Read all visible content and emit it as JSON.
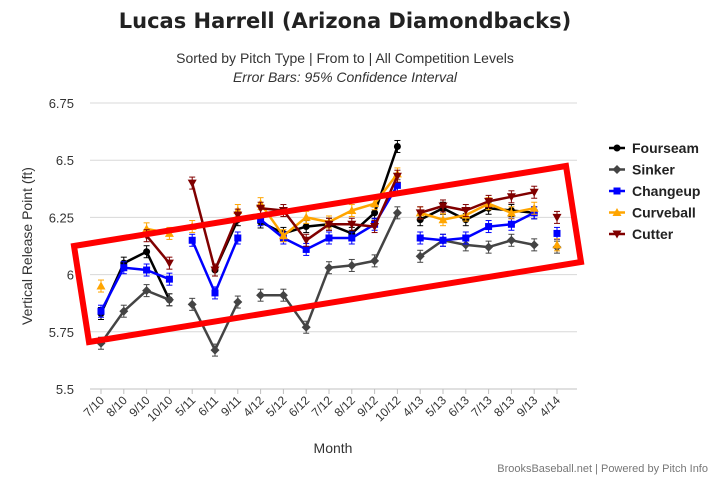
{
  "chart_data": {
    "type": "line",
    "title": "Lucas Harrell (Arizona Diamondbacks)",
    "subtitle": "Sorted by Pitch Type | From to | All Competition Levels",
    "subtitle2": "Error Bars: 95% Confidence Interval",
    "xlabel": "Month",
    "ylabel": "Vertical Release Point (ft)",
    "ylim": [
      5.5,
      6.75
    ],
    "y_ticks": [
      "5.5",
      "5.75",
      "6",
      "6.25",
      "6.5",
      "6.75"
    ],
    "x_ticks": [
      "7/10",
      "8/10",
      "9/10",
      "10/10",
      "5/11",
      "6/11",
      "9/11",
      "4/12",
      "5/12",
      "6/12",
      "7/12",
      "8/12",
      "9/12",
      "10/12",
      "4/13",
      "5/13",
      "6/13",
      "7/13",
      "8/13",
      "9/13",
      "4/14"
    ],
    "grid": true,
    "legend_position": "right",
    "credits": "BrooksBaseball.net | Powered by Pitch Info",
    "series": [
      {
        "name": "Fourseam",
        "color": "#000000",
        "marker": "circle",
        "segments": [
          [
            [
              0,
              5.83
            ],
            [
              1,
              6.05
            ],
            [
              2,
              6.1
            ],
            [
              3,
              5.89
            ]
          ],
          [
            [
              5,
              6.02
            ],
            [
              6,
              6.24
            ]
          ],
          [
            [
              7,
              6.23
            ],
            [
              8,
              6.18
            ],
            [
              9,
              6.21
            ],
            [
              10,
              6.22
            ],
            [
              11,
              6.18
            ],
            [
              12,
              6.27
            ],
            [
              13,
              6.56
            ]
          ],
          [
            [
              14,
              6.24
            ],
            [
              15,
              6.29
            ],
            [
              16,
              6.24
            ],
            [
              17,
              6.29
            ],
            [
              18,
              6.28
            ],
            [
              19,
              6.27
            ]
          ]
        ]
      },
      {
        "name": "Sinker",
        "color": "#444444",
        "marker": "diamond",
        "segments": [
          [
            [
              0,
              5.7
            ],
            [
              1,
              5.84
            ],
            [
              2,
              5.93
            ],
            [
              3,
              5.89
            ]
          ],
          [
            [
              4,
              5.87
            ],
            [
              5,
              5.67
            ],
            [
              6,
              5.88
            ]
          ],
          [
            [
              7,
              5.91
            ],
            [
              8,
              5.91
            ],
            [
              9,
              5.77
            ],
            [
              10,
              6.03
            ],
            [
              11,
              6.04
            ],
            [
              12,
              6.06
            ],
            [
              13,
              6.27
            ]
          ],
          [
            [
              14,
              6.08
            ],
            [
              15,
              6.15
            ],
            [
              16,
              6.13
            ],
            [
              17,
              6.12
            ],
            [
              18,
              6.15
            ],
            [
              19,
              6.13
            ]
          ],
          [
            [
              20,
              6.12
            ]
          ]
        ]
      },
      {
        "name": "Changeup",
        "color": "#0000ff",
        "marker": "square",
        "segments": [
          [
            [
              0,
              5.84
            ],
            [
              1,
              6.03
            ],
            [
              2,
              6.02
            ],
            [
              3,
              5.98
            ]
          ],
          [
            [
              4,
              6.15
            ],
            [
              5,
              5.92
            ],
            [
              6,
              6.16
            ]
          ],
          [
            [
              7,
              6.24
            ],
            [
              8,
              6.16
            ],
            [
              9,
              6.11
            ],
            [
              10,
              6.16
            ],
            [
              11,
              6.16
            ],
            [
              12,
              6.22
            ],
            [
              13,
              6.39
            ]
          ],
          [
            [
              14,
              6.16
            ],
            [
              15,
              6.15
            ],
            [
              16,
              6.16
            ],
            [
              17,
              6.21
            ],
            [
              18,
              6.22
            ],
            [
              19,
              6.27
            ]
          ],
          [
            [
              20,
              6.18
            ]
          ]
        ]
      },
      {
        "name": "Curveball",
        "color": "#ffa500",
        "marker": "triangle",
        "segments": [
          [
            [
              0,
              5.95
            ]
          ],
          [
            [
              2,
              6.2
            ],
            [
              3,
              6.18
            ]
          ],
          [
            [
              4,
              6.21
            ]
          ],
          [
            [
              6,
              6.28
            ]
          ],
          [
            [
              7,
              6.31
            ],
            [
              8,
              6.17
            ],
            [
              9,
              6.25
            ],
            [
              10,
              6.23
            ],
            [
              11,
              6.28
            ],
            [
              12,
              6.31
            ],
            [
              13,
              6.44
            ]
          ],
          [
            [
              14,
              6.27
            ],
            [
              15,
              6.24
            ],
            [
              16,
              6.26
            ],
            [
              17,
              6.31
            ],
            [
              18,
              6.27
            ],
            [
              19,
              6.29
            ]
          ],
          [
            [
              20,
              6.13
            ]
          ]
        ]
      },
      {
        "name": "Cutter",
        "color": "#800000",
        "marker": "triangle-down",
        "segments": [
          [
            [
              2,
              6.17
            ],
            [
              3,
              6.05
            ]
          ],
          [
            [
              4,
              6.4
            ],
            [
              5,
              6.02
            ],
            [
              6,
              6.26
            ]
          ],
          [
            [
              7,
              6.29
            ],
            [
              8,
              6.28
            ],
            [
              9,
              6.15
            ],
            [
              10,
              6.22
            ],
            [
              11,
              6.22
            ],
            [
              12,
              6.21
            ],
            [
              13,
              6.43
            ]
          ],
          [
            [
              14,
              6.27
            ],
            [
              15,
              6.3
            ],
            [
              16,
              6.28
            ],
            [
              17,
              6.32
            ],
            [
              18,
              6.34
            ],
            [
              19,
              6.36
            ]
          ],
          [
            [
              20,
              6.25
            ]
          ]
        ]
      }
    ],
    "annotation_box_color": "#ff0000"
  }
}
